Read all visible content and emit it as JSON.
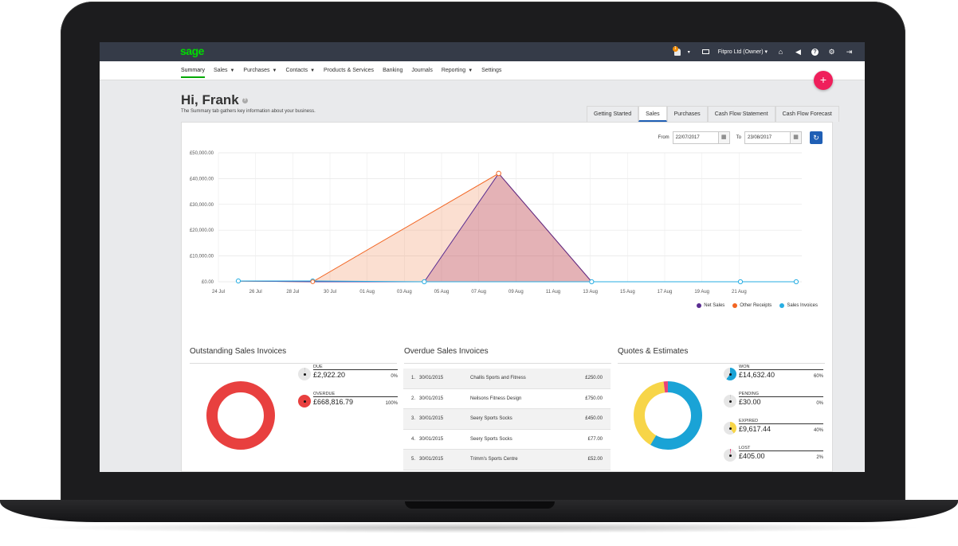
{
  "topbar": {
    "logo": "sage",
    "notification_count": "1",
    "company": "Fitpro Ltd (Owner)"
  },
  "nav": {
    "items": [
      {
        "label": "Summary",
        "dropdown": false
      },
      {
        "label": "Sales",
        "dropdown": true
      },
      {
        "label": "Purchases",
        "dropdown": true
      },
      {
        "label": "Contacts",
        "dropdown": true
      },
      {
        "label": "Products & Services",
        "dropdown": false
      },
      {
        "label": "Banking",
        "dropdown": false
      },
      {
        "label": "Journals",
        "dropdown": false
      },
      {
        "label": "Reporting",
        "dropdown": true
      },
      {
        "label": "Settings",
        "dropdown": false
      }
    ],
    "active": "Summary"
  },
  "fab_label": "+",
  "header": {
    "greeting": "Hi, Frank",
    "subtitle": "The Summary tab gathers key information about your business."
  },
  "tabs": {
    "items": [
      "Getting Started",
      "Sales",
      "Purchases",
      "Cash Flow Statement",
      "Cash Flow Forecast"
    ],
    "active": "Sales"
  },
  "date_filter": {
    "from_label": "From",
    "from_value": "22/07/2017",
    "to_label": "To",
    "to_value": "23/08/2017"
  },
  "colors": {
    "net_sales": "#5a2d91",
    "other_receipts": "#f26522",
    "sales_invoices": "#27aee3",
    "accent_blue": "#1f5fb5",
    "brand_green": "#00dc00",
    "fab_pink": "#ef1f5b"
  },
  "chart_data": {
    "type": "area",
    "y_ticks": [
      "£50,000.00",
      "£40,000.00",
      "£30,000.00",
      "£20,000.00",
      "£10,000.00",
      "£0.00"
    ],
    "ylim": [
      0,
      50000
    ],
    "x_ticks": [
      "24 Jul",
      "26 Jul",
      "28 Jul",
      "30 Jul",
      "01 Aug",
      "03 Aug",
      "05 Aug",
      "07 Aug",
      "09 Aug",
      "11 Aug",
      "13 Aug",
      "15 Aug",
      "17 Aug",
      "19 Aug",
      "21 Aug"
    ],
    "series": [
      {
        "name": "Net Sales",
        "points": [
          [
            "24 Jul",
            300
          ],
          [
            "28 Jul",
            0
          ],
          [
            "03 Aug",
            0
          ],
          [
            "07 Aug",
            42000
          ],
          [
            "12 Aug",
            0
          ],
          [
            "20 Aug",
            0
          ],
          [
            "23 Aug",
            0
          ]
        ]
      },
      {
        "name": "Other Receipts",
        "points": [
          [
            "24 Jul",
            300
          ],
          [
            "28 Jul",
            0
          ],
          [
            "07 Aug",
            42000
          ],
          [
            "12 Aug",
            0
          ],
          [
            "20 Aug",
            0
          ],
          [
            "23 Aug",
            0
          ]
        ]
      },
      {
        "name": "Sales Invoices",
        "points": [
          [
            "24 Jul",
            300
          ],
          [
            "28 Jul",
            300
          ],
          [
            "03 Aug",
            0
          ],
          [
            "12 Aug",
            0
          ],
          [
            "20 Aug",
            0
          ],
          [
            "23 Aug",
            0
          ]
        ]
      }
    ],
    "legend": [
      "Net Sales",
      "Other Receipts",
      "Sales Invoices"
    ],
    "legend_position": "bottom-right",
    "grid": true
  },
  "outstanding": {
    "title": "Outstanding Sales Invoices",
    "items": [
      {
        "label": "DUE",
        "amount": "£2,922.20",
        "pct": "0%",
        "fraction": 0.0
      },
      {
        "label": "OVERDUE",
        "amount": "£668,816.79",
        "pct": "100%",
        "fraction": 1.0
      }
    ]
  },
  "overdue": {
    "title": "Overdue Sales Invoices",
    "rows": [
      {
        "n": "1.",
        "date": "30/01/2015",
        "customer": "Challis Sports and Fitness",
        "amount": "£250.00"
      },
      {
        "n": "2.",
        "date": "30/01/2015",
        "customer": "Neilsons Fitness Design",
        "amount": "£750.00"
      },
      {
        "n": "3.",
        "date": "30/01/2015",
        "customer": "Seery Sports Socks",
        "amount": "£450.00"
      },
      {
        "n": "4.",
        "date": "30/01/2015",
        "customer": "Seery Sports Socks",
        "amount": "£77.00"
      },
      {
        "n": "5.",
        "date": "30/01/2015",
        "customer": "Trimm's Sports Centre",
        "amount": "£52.00"
      }
    ]
  },
  "quotes": {
    "title": "Quotes & Estimates",
    "items": [
      {
        "label": "WON",
        "amount": "£14,632.40",
        "pct": "60%",
        "fraction": 0.6,
        "color": "#1aa3d6"
      },
      {
        "label": "PENDING",
        "amount": "£30.00",
        "pct": "0%",
        "fraction": 0.0,
        "color": "#cfcfcf"
      },
      {
        "label": "EXPIRED",
        "amount": "£9,617.44",
        "pct": "40%",
        "fraction": 0.4,
        "color": "#f7d548"
      },
      {
        "label": "LOST",
        "amount": "£405.00",
        "pct": "2%",
        "fraction": 0.02,
        "color": "#e8417a"
      }
    ]
  }
}
